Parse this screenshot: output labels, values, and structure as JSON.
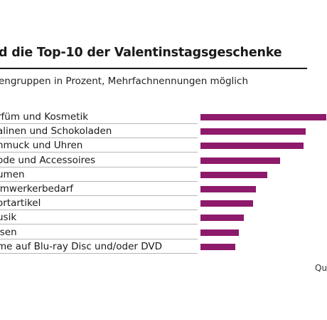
{
  "chart_data": {
    "type": "bar",
    "orientation": "horizontal",
    "title": "d die Top-10 der Valentinstagsgeschenke",
    "subtitle": "engruppen in Prozent, Mehrfachnennungen möglich",
    "categories": [
      "rfüm und Kosmetik",
      "alinen und Schokoladen",
      "hmuck und Uhren",
      "ode und Accessoires",
      "umen",
      "imwerkerbedarf",
      "ortartikel",
      "usik",
      "isen",
      "me auf Blu-ray Disc und/oder DVD"
    ],
    "values": [
      24.5,
      20.5,
      20.0,
      15.5,
      13.0,
      10.8,
      10.3,
      8.5,
      7.4,
      6.8
    ],
    "xlim": [
      0,
      24.5
    ],
    "bar_color": "#8e1a6b",
    "grid": false,
    "source_label": "Qu"
  }
}
